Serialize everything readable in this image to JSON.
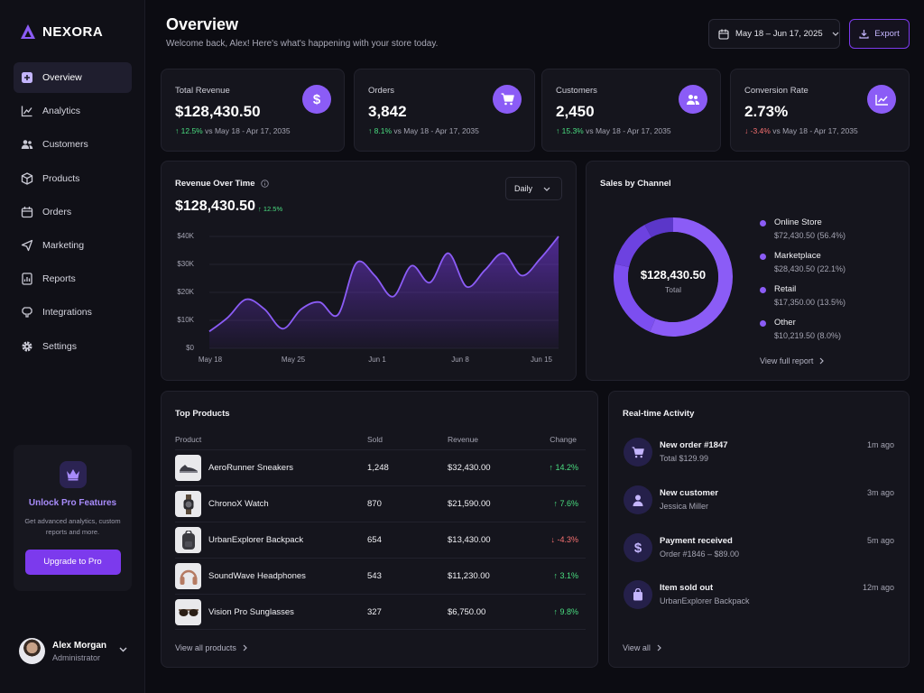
{
  "app": {
    "name": "NEXORA"
  },
  "sidebar": {
    "items": [
      {
        "label": "Overview",
        "icon": "overview-icon"
      },
      {
        "label": "Analytics",
        "icon": "analytics-icon"
      },
      {
        "label": "Customers",
        "icon": "customers-icon"
      },
      {
        "label": "Products",
        "icon": "products-icon"
      },
      {
        "label": "Orders",
        "icon": "orders-icon"
      },
      {
        "label": "Marketing",
        "icon": "marketing-icon"
      },
      {
        "label": "Reports",
        "icon": "reports-icon"
      },
      {
        "label": "Integrations",
        "icon": "integrations-icon"
      },
      {
        "label": "Settings",
        "icon": "settings-icon"
      }
    ],
    "promo": {
      "title": "Unlock Pro Features",
      "text": "Get advanced analytics, custom reports and more.",
      "button": "Upgrade to Pro"
    },
    "user": {
      "name": "Alex Morgan",
      "role": "Administrator"
    }
  },
  "header": {
    "title": "Overview",
    "subtitle": "Welcome back, Alex! Here's what's happening with your store today.",
    "date_range": "May 18 – Jun 17, 2025",
    "export_label": "Export"
  },
  "kpis": [
    {
      "label": "Total Revenue",
      "value": "$128,430.50",
      "change": "12.5%",
      "direction": "up",
      "compare": "vs May 18 - Apr 17, 2035",
      "icon": "dollar-icon"
    },
    {
      "label": "Orders",
      "value": "3,842",
      "change": "8.1%",
      "direction": "up",
      "compare": "vs May 18 - Apr 17, 2035",
      "icon": "cart-icon"
    },
    {
      "label": "Customers",
      "value": "2,450",
      "change": "15.3%",
      "direction": "up",
      "compare": "vs May 18 - Apr 17, 2035",
      "icon": "users-icon"
    },
    {
      "label": "Conversion Rate",
      "value": "2.73%",
      "change": "-3.4%",
      "direction": "down",
      "compare": "vs May 18 - Apr 17, 2035",
      "icon": "trend-icon"
    }
  ],
  "revenue_chart": {
    "title": "Revenue Over Time",
    "value": "$128,430.50",
    "change": "12.5%",
    "period": "Daily",
    "y_ticks": [
      "$40K",
      "$30K",
      "$20K",
      "$10K",
      "$0"
    ],
    "x_ticks": [
      "May 18",
      "May 25",
      "Jun 1",
      "Jun 8",
      "Jun 15"
    ]
  },
  "sales_channel": {
    "title": "Sales by Channel",
    "total": "$128,430.50",
    "total_label": "Total",
    "link": "View full report"
  },
  "chart_data": [
    {
      "type": "area",
      "title": "Revenue Over Time",
      "xlabel": "",
      "ylabel": "",
      "ylim": [
        0,
        40000
      ],
      "x_ticks": [
        "May 18",
        "May 25",
        "Jun 1",
        "Jun 8",
        "Jun 15"
      ],
      "x": [
        0,
        1.5,
        3,
        4.5,
        6,
        7.5,
        9,
        10.5,
        12,
        13.5,
        15,
        16.5,
        18,
        19.5,
        21,
        22.5,
        24,
        25.5,
        27,
        28.5
      ],
      "values": [
        6000,
        11000,
        17500,
        14000,
        7000,
        14000,
        16500,
        12000,
        30500,
        26000,
        18500,
        29500,
        23500,
        34000,
        22000,
        28000,
        34000,
        26000,
        32000,
        40000
      ],
      "grid": true
    },
    {
      "type": "pie",
      "title": "Sales by Channel",
      "categories": [
        "Online Store",
        "Marketplace",
        "Retail",
        "Other"
      ],
      "values": [
        72430.5,
        28430.5,
        17350.0,
        10219.5
      ],
      "percents": [
        56.4,
        22.1,
        13.5,
        8.0
      ],
      "labels": [
        "$72,430.50 (56.4%)",
        "$28,430.50 (22.1%)",
        "$17,350.00 (13.5%)",
        "$10,219.50 (8.0%)"
      ],
      "colors": [
        "#8b5cf6",
        "#7c4ef0",
        "#6d42e0",
        "#5b37c9"
      ]
    }
  ],
  "top_products": {
    "title": "Top Products",
    "columns": [
      "Product",
      "Sold",
      "Revenue",
      "Change"
    ],
    "rows": [
      {
        "name": "AeroRunner Sneakers",
        "sold": "1,248",
        "revenue": "$32,430.00",
        "change": "14.2%",
        "direction": "up",
        "icon": "sneaker-icon"
      },
      {
        "name": "ChronoX Watch",
        "sold": "870",
        "revenue": "$21,590.00",
        "change": "7.6%",
        "direction": "up",
        "icon": "watch-icon"
      },
      {
        "name": "UrbanExplorer Backpack",
        "sold": "654",
        "revenue": "$13,430.00",
        "change": "-4.3%",
        "direction": "down",
        "icon": "backpack-icon"
      },
      {
        "name": "SoundWave Headphones",
        "sold": "543",
        "revenue": "$11,230.00",
        "change": "3.1%",
        "direction": "up",
        "icon": "headphones-icon"
      },
      {
        "name": "Vision Pro Sunglasses",
        "sold": "327",
        "revenue": "$6,750.00",
        "change": "9.8%",
        "direction": "up",
        "icon": "sunglasses-icon"
      }
    ],
    "link": "View all products"
  },
  "activity": {
    "title": "Real-time Activity",
    "items": [
      {
        "title": "New order #1847",
        "detail": "Total $129.99",
        "time": "1m ago",
        "icon": "cart-icon"
      },
      {
        "title": "New customer",
        "detail": "Jessica Miller",
        "time": "3m ago",
        "icon": "user-icon"
      },
      {
        "title": "Payment received",
        "detail": "Order #1846 – $89.00",
        "time": "5m ago",
        "icon": "dollar-icon"
      },
      {
        "title": "Item sold out",
        "detail": "UrbanExplorer Backpack",
        "time": "12m ago",
        "icon": "bag-icon"
      }
    ],
    "link": "View all"
  }
}
